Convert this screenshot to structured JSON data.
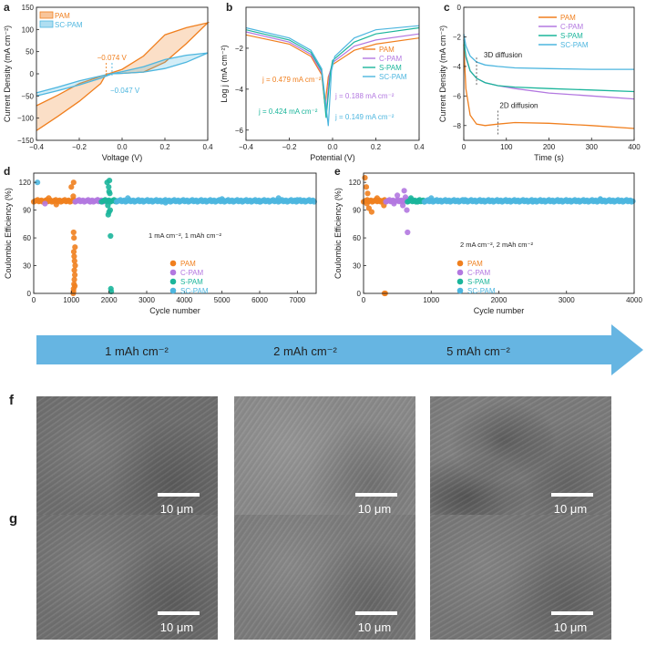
{
  "colors": {
    "PAM": "#F07F1E",
    "C-PAM": "#B378E0",
    "S-PAM": "#1BB59B",
    "SC-PAM": "#4DB6DF",
    "arrow": "#66B5E2"
  },
  "panel_labels": {
    "a": "a",
    "b": "b",
    "c": "c",
    "d": "d",
    "e": "e",
    "f": "f",
    "g": "g"
  },
  "arrow_labels": [
    "1 mAh cm⁻²",
    "2 mAh cm⁻²",
    "5 mAh cm⁻²"
  ],
  "scale_bar_label": "10 μm",
  "chart_data": [
    {
      "id": "a",
      "type": "line",
      "xlabel": "Voltage (V)",
      "ylabel": "Current Density (mA cm⁻²)",
      "xlim": [
        -0.4,
        0.4
      ],
      "ylim": [
        -150,
        150
      ],
      "xticks": [
        -0.4,
        -0.2,
        0.0,
        0.2,
        0.4
      ],
      "yticks": [
        -150,
        -100,
        -50,
        0,
        50,
        100,
        150
      ],
      "legend": [
        "PAM",
        "SC-PAM"
      ],
      "annotations": [
        "−0.074 V",
        "−0.047 V"
      ],
      "series": [
        {
          "name": "PAM",
          "x": [
            -0.4,
            -0.3,
            -0.2,
            -0.1,
            -0.074,
            0,
            0.1,
            0.2,
            0.3,
            0.4,
            0.3,
            0.2,
            0.1,
            0,
            -0.1,
            -0.2,
            -0.3,
            -0.4
          ],
          "y": [
            -128,
            -96,
            -62,
            -22,
            0,
            1,
            4,
            26,
            68,
            115,
            104,
            88,
            40,
            10,
            -6,
            -22,
            -48,
            -72
          ]
        },
        {
          "name": "SC-PAM",
          "x": [
            -0.4,
            -0.3,
            -0.2,
            -0.1,
            -0.047,
            0,
            0.1,
            0.2,
            0.3,
            0.4,
            0.3,
            0.2,
            0.1,
            0,
            -0.1,
            -0.2,
            -0.3,
            -0.4
          ],
          "y": [
            -50,
            -38,
            -25,
            -10,
            0,
            1,
            4,
            12,
            26,
            47,
            42,
            32,
            16,
            5,
            -5,
            -16,
            -30,
            -43
          ]
        }
      ]
    },
    {
      "id": "b",
      "type": "line",
      "xlabel": "Potential (V)",
      "ylabel": "Log j (mA cm⁻²)",
      "xlim": [
        -0.4,
        0.4
      ],
      "ylim": [
        -6.5,
        0
      ],
      "xticks": [
        -0.4,
        -0.2,
        0.0,
        0.2,
        0.4
      ],
      "yticks": [
        -6,
        -4,
        -2
      ],
      "legend": [
        "PAM",
        "C-PAM",
        "S-PAM",
        "SC-PAM"
      ],
      "annotations": [
        "j = 0.479 mA cm⁻²",
        "j = 0.424 mA cm⁻²",
        "j = 0.188 mA cm⁻²",
        "j = 0.149 mA cm⁻²"
      ],
      "series": [
        {
          "name": "PAM",
          "x": [
            -0.4,
            -0.2,
            -0.1,
            -0.05,
            -0.035,
            -0.02,
            0.0,
            0.1,
            0.2,
            0.4
          ],
          "y": [
            -1.35,
            -1.8,
            -2.4,
            -3.3,
            -4.8,
            -3.4,
            -2.8,
            -2.1,
            -1.8,
            -1.5
          ]
        },
        {
          "name": "C-PAM",
          "x": [
            -0.4,
            -0.2,
            -0.1,
            -0.05,
            -0.03,
            -0.015,
            0.0,
            0.1,
            0.2,
            0.4
          ],
          "y": [
            -1.2,
            -1.7,
            -2.3,
            -3.2,
            -5.2,
            -3.3,
            -2.7,
            -1.9,
            -1.6,
            -1.3
          ]
        },
        {
          "name": "S-PAM",
          "x": [
            -0.4,
            -0.2,
            -0.1,
            -0.05,
            -0.03,
            -0.01,
            0.0,
            0.1,
            0.2,
            0.4
          ],
          "y": [
            -1.1,
            -1.6,
            -2.2,
            -3.1,
            -5.4,
            -3.2,
            -2.6,
            -1.7,
            -1.3,
            -1.0
          ]
        },
        {
          "name": "SC-PAM",
          "x": [
            -0.4,
            -0.2,
            -0.1,
            -0.05,
            -0.02,
            -0.005,
            0.01,
            0.1,
            0.2,
            0.4
          ],
          "y": [
            -1.0,
            -1.5,
            -2.1,
            -3.0,
            -5.8,
            -3.1,
            -2.4,
            -1.5,
            -1.1,
            -0.9
          ]
        }
      ]
    },
    {
      "id": "c",
      "type": "line",
      "xlabel": "Time (s)",
      "ylabel": "Current Density (mA cm⁻²)",
      "xlim": [
        0,
        400
      ],
      "ylim": [
        -9,
        0
      ],
      "xticks": [
        0,
        100,
        200,
        300,
        400
      ],
      "yticks": [
        -8,
        -6,
        -4,
        -2,
        0
      ],
      "legend": [
        "PAM",
        "C-PAM",
        "S-PAM",
        "SC-PAM"
      ],
      "annotations": [
        "3D diffusion",
        "2D diffusion"
      ],
      "series": [
        {
          "name": "PAM",
          "x": [
            0,
            5,
            15,
            30,
            50,
            80,
            120,
            200,
            300,
            400
          ],
          "y": [
            -2.5,
            -5.5,
            -7.3,
            -7.9,
            -8.0,
            -7.9,
            -7.8,
            -7.85,
            -8.0,
            -8.2
          ]
        },
        {
          "name": "C-PAM",
          "x": [
            0,
            5,
            15,
            30,
            50,
            80,
            120,
            200,
            300,
            400
          ],
          "y": [
            -2.2,
            -3.4,
            -4.3,
            -4.8,
            -5.1,
            -5.3,
            -5.5,
            -5.8,
            -6.0,
            -6.2
          ]
        },
        {
          "name": "S-PAM",
          "x": [
            0,
            5,
            15,
            30,
            50,
            80,
            120,
            200,
            300,
            400
          ],
          "y": [
            -2.2,
            -3.3,
            -4.3,
            -4.8,
            -5.1,
            -5.3,
            -5.4,
            -5.5,
            -5.6,
            -5.7
          ]
        },
        {
          "name": "SC-PAM",
          "x": [
            0,
            5,
            15,
            30,
            50,
            80,
            120,
            200,
            300,
            400
          ],
          "y": [
            -1.8,
            -2.6,
            -3.3,
            -3.7,
            -3.9,
            -4.0,
            -4.1,
            -4.15,
            -4.2,
            -4.2
          ]
        }
      ]
    },
    {
      "id": "d",
      "type": "scatter",
      "xlabel": "Cycle number",
      "ylabel": "Coulombic Efficiency (%)",
      "xlim": [
        0,
        7500
      ],
      "ylim": [
        0,
        130
      ],
      "xticks": [
        0,
        1000,
        2000,
        3000,
        4000,
        5000,
        6000,
        7000
      ],
      "yticks": [
        0,
        30,
        60,
        90,
        120
      ],
      "legend": [
        "PAM",
        "C-PAM",
        "S-PAM",
        "SC-PAM"
      ],
      "annotation": "1 mA cm⁻², 1 mAh cm⁻²",
      "series": [
        {
          "name": "PAM",
          "segment": [
            0,
            1100,
            100
          ],
          "outliers": [
            [
              1050,
              0
            ],
            [
              1060,
              5
            ],
            [
              1070,
              10
            ],
            [
              1080,
              15
            ],
            [
              1090,
              20
            ],
            [
              1100,
              30
            ],
            [
              1075,
              40
            ],
            [
              1085,
              35
            ],
            [
              1060,
              66
            ],
            [
              1070,
              60
            ],
            [
              1080,
              25
            ],
            [
              1090,
              8
            ],
            [
              1050,
              105
            ],
            [
              1060,
              120
            ],
            [
              400,
              103
            ],
            [
              600,
              96
            ],
            [
              1000,
              115
            ],
            [
              1095,
              50
            ],
            [
              1065,
              45
            ],
            [
              1055,
              2
            ]
          ]
        },
        {
          "name": "C-PAM",
          "segment": [
            1100,
            1900,
            100
          ],
          "outliers": [
            [
              300,
              97
            ],
            [
              1500,
              99
            ],
            [
              1700,
              101
            ]
          ]
        },
        {
          "name": "S-PAM",
          "segment": [
            1800,
            2200,
            100
          ],
          "outliers": [
            [
              1950,
              120
            ],
            [
              1990,
              115
            ],
            [
              2010,
              122
            ],
            [
              2000,
              110
            ],
            [
              2020,
              108
            ],
            [
              2040,
              62
            ],
            [
              2000,
              88
            ],
            [
              1980,
              85
            ],
            [
              2050,
              5
            ],
            [
              2060,
              2
            ],
            [
              1970,
              95
            ],
            [
              2030,
              90
            ]
          ]
        },
        {
          "name": "SC-PAM",
          "segment": [
            2200,
            7450,
            100
          ],
          "outliers": [
            [
              2500,
              103
            ],
            [
              3500,
              98
            ],
            [
              5000,
              102
            ],
            [
              6000,
              99
            ],
            [
              7000,
              101
            ],
            [
              6500,
              103
            ],
            [
              100,
              120
            ]
          ]
        }
      ]
    },
    {
      "id": "e",
      "type": "scatter",
      "xlabel": "Cycle number",
      "ylabel": "Coulombic Efficiency (%)",
      "xlim": [
        0,
        4000
      ],
      "ylim": [
        0,
        130
      ],
      "xticks": [
        0,
        1000,
        2000,
        3000,
        4000
      ],
      "yticks": [
        0,
        30,
        60,
        90,
        120
      ],
      "legend": [
        "PAM",
        "C-PAM",
        "S-PAM",
        "SC-PAM"
      ],
      "annotation": "2 mA cm⁻², 2 mAh cm⁻²",
      "series": [
        {
          "name": "PAM",
          "segment": [
            0,
            330,
            100
          ],
          "outliers": [
            [
              20,
              125
            ],
            [
              40,
              115
            ],
            [
              60,
              108
            ],
            [
              80,
              92
            ],
            [
              120,
              88
            ],
            [
              200,
              103
            ],
            [
              300,
              95
            ],
            [
              310,
              0
            ],
            [
              320,
              0
            ],
            [
              50,
              97
            ]
          ]
        },
        {
          "name": "C-PAM",
          "segment": [
            330,
            650,
            100
          ],
          "outliers": [
            [
              600,
              111
            ],
            [
              620,
              104
            ],
            [
              640,
              90
            ],
            [
              650,
              66
            ],
            [
              500,
              106
            ],
            [
              450,
              97
            ],
            [
              580,
              95
            ]
          ]
        },
        {
          "name": "S-PAM",
          "segment": [
            650,
            900,
            100
          ],
          "outliers": [
            [
              700,
              103
            ],
            [
              800,
              99
            ]
          ]
        },
        {
          "name": "SC-PAM",
          "segment": [
            900,
            3980,
            100
          ],
          "outliers": [
            [
              1000,
              103
            ],
            [
              2500,
              99
            ],
            [
              3500,
              102
            ],
            [
              1500,
              101
            ]
          ]
        }
      ]
    }
  ]
}
